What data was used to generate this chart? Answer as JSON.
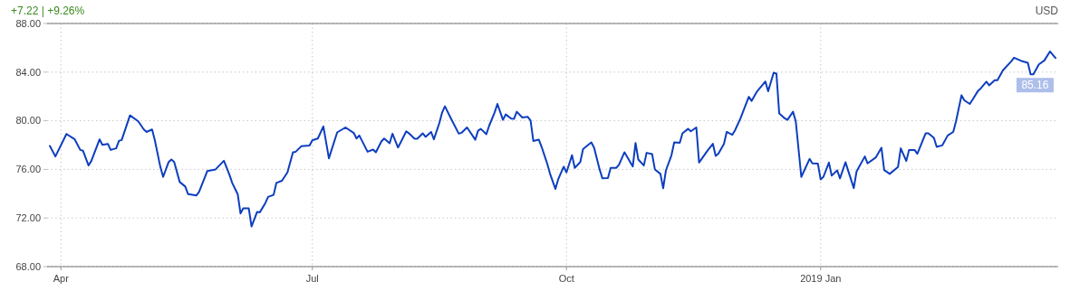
{
  "chart_data": {
    "type": "line",
    "subtitle": "+7.22 | +9.26%",
    "ylabel": "USD",
    "x": [
      "2018-03-28",
      "2018-03-30",
      "2018-04-03",
      "2018-04-06",
      "2018-04-08",
      "2018-04-09",
      "2018-04-11",
      "2018-04-12",
      "2018-04-15",
      "2018-04-16",
      "2018-04-18",
      "2018-04-19",
      "2018-04-21",
      "2018-04-22",
      "2018-04-23",
      "2018-04-26",
      "2018-04-29",
      "2018-05-01",
      "2018-05-02",
      "2018-05-04",
      "2018-05-05",
      "2018-05-07",
      "2018-05-08",
      "2018-05-10",
      "2018-05-11",
      "2018-05-12",
      "2018-05-14",
      "2018-05-16",
      "2018-05-17",
      "2018-05-20",
      "2018-05-21",
      "2018-05-24",
      "2018-05-27",
      "2018-05-30",
      "2018-06-01",
      "2018-06-02",
      "2018-06-04",
      "2018-06-05",
      "2018-06-06",
      "2018-06-08",
      "2018-06-09",
      "2018-06-11",
      "2018-06-12",
      "2018-06-14",
      "2018-06-15",
      "2018-06-17",
      "2018-06-18",
      "2018-06-20",
      "2018-06-22",
      "2018-06-24",
      "2018-06-25",
      "2018-06-27",
      "2018-06-30",
      "2018-07-01",
      "2018-07-03",
      "2018-07-05",
      "2018-07-07",
      "2018-07-10",
      "2018-07-13",
      "2018-07-16",
      "2018-07-17",
      "2018-07-18",
      "2018-07-21",
      "2018-07-23",
      "2018-07-24",
      "2018-07-26",
      "2018-07-27",
      "2018-07-29",
      "2018-07-30",
      "2018-08-01",
      "2018-08-02",
      "2018-08-04",
      "2018-08-05",
      "2018-08-07",
      "2018-08-08",
      "2018-08-10",
      "2018-08-11",
      "2018-08-13",
      "2018-08-14",
      "2018-08-16",
      "2018-08-17",
      "2018-08-18",
      "2018-08-20",
      "2018-08-23",
      "2018-08-24",
      "2018-08-26",
      "2018-08-29",
      "2018-08-30",
      "2018-08-31",
      "2018-09-02",
      "2018-09-03",
      "2018-09-05",
      "2018-09-06",
      "2018-09-08",
      "2018-09-09",
      "2018-09-11",
      "2018-09-12",
      "2018-09-13",
      "2018-09-15",
      "2018-09-17",
      "2018-09-18",
      "2018-09-19",
      "2018-09-21",
      "2018-09-22",
      "2018-09-24",
      "2018-09-25",
      "2018-09-27",
      "2018-09-28",
      "2018-09-30",
      "2018-10-01",
      "2018-10-03",
      "2018-10-04",
      "2018-10-06",
      "2018-10-07",
      "2018-10-09",
      "2018-10-10",
      "2018-10-11",
      "2018-10-13",
      "2018-10-14",
      "2018-10-16",
      "2018-10-17",
      "2018-10-19",
      "2018-10-20",
      "2018-10-22",
      "2018-10-25",
      "2018-10-26",
      "2018-10-27",
      "2018-10-29",
      "2018-10-30",
      "2018-11-01",
      "2018-11-02",
      "2018-11-04",
      "2018-11-05",
      "2018-11-06",
      "2018-11-08",
      "2018-11-09",
      "2018-11-11",
      "2018-11-12",
      "2018-11-14",
      "2018-11-15",
      "2018-11-17",
      "2018-11-18",
      "2018-11-21",
      "2018-11-23",
      "2018-11-24",
      "2018-11-25",
      "2018-11-27",
      "2018-11-28",
      "2018-11-30",
      "2018-12-01",
      "2018-12-03",
      "2018-12-06",
      "2018-12-07",
      "2018-12-09",
      "2018-12-12",
      "2018-12-13",
      "2018-12-15",
      "2018-12-16",
      "2018-12-17",
      "2018-12-19",
      "2018-12-20",
      "2018-12-22",
      "2018-12-23",
      "2018-12-25",
      "2018-12-28",
      "2018-12-29",
      "2018-12-31",
      "2019-01-01",
      "2019-01-02",
      "2019-01-04",
      "2019-01-05",
      "2019-01-07",
      "2019-01-08",
      "2019-01-10",
      "2019-01-11",
      "2019-01-13",
      "2019-01-14",
      "2019-01-17",
      "2019-01-18",
      "2019-01-21",
      "2019-01-23",
      "2019-01-24",
      "2019-01-26",
      "2019-01-29",
      "2019-01-30",
      "2019-02-01",
      "2019-02-02",
      "2019-02-04",
      "2019-02-05",
      "2019-02-08",
      "2019-02-09",
      "2019-02-11",
      "2019-02-12",
      "2019-02-14",
      "2019-02-16",
      "2019-02-18",
      "2019-02-19",
      "2019-02-21",
      "2019-02-22",
      "2019-02-24",
      "2019-02-25",
      "2019-02-27",
      "2019-02-28",
      "2019-03-02",
      "2019-03-03",
      "2019-03-05",
      "2019-03-06",
      "2019-03-08",
      "2019-03-11",
      "2019-03-12",
      "2019-03-15",
      "2019-03-17",
      "2019-03-18",
      "2019-03-19",
      "2019-03-21",
      "2019-03-23",
      "2019-03-25",
      "2019-03-27"
    ],
    "series": [
      {
        "color": "#0d3ebf",
        "values": [
          77.93,
          77.06,
          78.91,
          78.47,
          77.6,
          77.53,
          76.32,
          76.69,
          78.47,
          78.02,
          78.1,
          77.6,
          77.73,
          78.34,
          78.42,
          80.44,
          79.95,
          79.28,
          79.08,
          79.28,
          78.39,
          76.19,
          75.38,
          76.61,
          76.81,
          76.61,
          74.96,
          74.59,
          73.97,
          73.85,
          74.15,
          75.87,
          76.0,
          76.71,
          75.56,
          74.89,
          73.95,
          72.37,
          72.79,
          72.79,
          71.3,
          72.49,
          72.47,
          73.23,
          73.73,
          73.9,
          74.89,
          75.06,
          75.75,
          77.41,
          77.45,
          77.9,
          77.97,
          78.39,
          78.54,
          79.53,
          76.91,
          79.04,
          79.45,
          79.0,
          78.54,
          78.79,
          77.45,
          77.63,
          77.41,
          78.3,
          78.54,
          78.15,
          78.93,
          77.8,
          78.22,
          79.13,
          78.96,
          78.52,
          78.52,
          78.96,
          78.67,
          79.08,
          78.47,
          79.82,
          80.69,
          81.19,
          80.27,
          78.94,
          79.01,
          79.45,
          78.44,
          79.18,
          79.33,
          78.89,
          79.58,
          80.69,
          81.38,
          80.07,
          80.52,
          80.17,
          80.15,
          80.74,
          80.27,
          80.32,
          80.02,
          78.34,
          78.44,
          77.85,
          76.49,
          75.67,
          74.39,
          75.18,
          76.22,
          75.75,
          77.16,
          76.12,
          76.61,
          77.67,
          78.04,
          78.22,
          77.78,
          76.0,
          75.26,
          75.28,
          76.12,
          76.12,
          76.37,
          77.41,
          76.24,
          78.17,
          76.81,
          76.32,
          77.36,
          77.26,
          76.0,
          75.63,
          74.44,
          75.92,
          77.16,
          78.22,
          78.19,
          78.96,
          79.33,
          79.13,
          79.45,
          76.56,
          77.53,
          78.1,
          77.11,
          77.3,
          78.1,
          79.08,
          78.84,
          79.21,
          80.2,
          81.97,
          81.63,
          82.42,
          83.23,
          82.42,
          83.95,
          83.87,
          80.61,
          80.2,
          80.07,
          80.74,
          79.95,
          75.38,
          76.86,
          76.49,
          76.47,
          75.18,
          75.38,
          76.56,
          75.48,
          75.92,
          75.26,
          76.59,
          75.87,
          74.46,
          75.82,
          77.06,
          76.49,
          76.99,
          77.78,
          75.95,
          75.63,
          76.19,
          77.73,
          76.69,
          77.6,
          77.6,
          77.28,
          78.96,
          78.96,
          78.59,
          77.85,
          77.97,
          78.79,
          79.08,
          79.95,
          82.1,
          81.68,
          81.38,
          81.73,
          82.47,
          82.67,
          83.21,
          82.91,
          83.33,
          83.33,
          84.15,
          84.89,
          85.19,
          84.89,
          84.76,
          83.82,
          83.82,
          84.64,
          84.96,
          85.7,
          85.16
        ]
      }
    ],
    "xlim": [
      "2018-03-27",
      "2019-03-28"
    ],
    "xticks": [
      {
        "value": "2018-04-01",
        "label": "Apr"
      },
      {
        "value": "2018-07-01",
        "label": "Jul"
      },
      {
        "value": "2018-10-01",
        "label": "Oct"
      },
      {
        "value": "2019-01-01",
        "label": "2019 Jan"
      }
    ],
    "ylim": [
      68,
      88
    ],
    "yticks": [
      {
        "value": 68,
        "label": "68.00"
      },
      {
        "value": 72,
        "label": "72.00"
      },
      {
        "value": 76,
        "label": "76.00"
      },
      {
        "value": 80,
        "label": "80.00"
      },
      {
        "value": 84,
        "label": "84.00"
      },
      {
        "value": 88,
        "label": "88.00"
      }
    ],
    "grid": true,
    "annotations": [
      {
        "text": "85.16",
        "x": "2019-03-27",
        "y": 85.16
      }
    ]
  }
}
